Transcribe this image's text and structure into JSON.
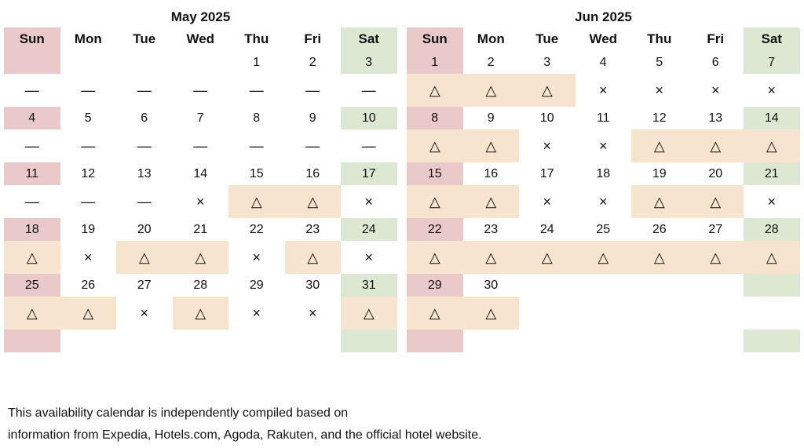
{
  "colors": {
    "sunday": "#e9c9c9",
    "saturday": "#dce8d2",
    "limited": "#f7e4ce"
  },
  "weekdays": [
    "Sun",
    "Mon",
    "Tue",
    "Wed",
    "Thu",
    "Fri",
    "Sat"
  ],
  "symbols": {
    "dash": "—",
    "limited": "△",
    "full": "×"
  },
  "months": [
    {
      "title": "May 2025",
      "weeks": [
        {
          "dates": [
            "",
            "",
            "",
            "",
            "1",
            "2",
            "3"
          ],
          "marks": [
            "—",
            "—",
            "—",
            "—",
            "—",
            "—",
            "—"
          ]
        },
        {
          "dates": [
            "4",
            "5",
            "6",
            "7",
            "8",
            "9",
            "10"
          ],
          "marks": [
            "—",
            "—",
            "—",
            "—",
            "—",
            "—",
            "—"
          ]
        },
        {
          "dates": [
            "11",
            "12",
            "13",
            "14",
            "15",
            "16",
            "17"
          ],
          "marks": [
            "—",
            "—",
            "—",
            "×",
            "△",
            "△",
            "×"
          ]
        },
        {
          "dates": [
            "18",
            "19",
            "20",
            "21",
            "22",
            "23",
            "24"
          ],
          "marks": [
            "△",
            "×",
            "△",
            "△",
            "×",
            "△",
            "×"
          ]
        },
        {
          "dates": [
            "25",
            "26",
            "27",
            "28",
            "29",
            "30",
            "31"
          ],
          "marks": [
            "△",
            "△",
            "×",
            "△",
            "×",
            "×",
            "△"
          ]
        },
        {
          "dates": [
            "",
            "",
            "",
            "",
            "",
            "",
            ""
          ],
          "marks": []
        }
      ]
    },
    {
      "title": "Jun 2025",
      "weeks": [
        {
          "dates": [
            "1",
            "2",
            "3",
            "4",
            "5",
            "6",
            "7"
          ],
          "marks": [
            "△",
            "△",
            "△",
            "×",
            "×",
            "×",
            "×"
          ]
        },
        {
          "dates": [
            "8",
            "9",
            "10",
            "11",
            "12",
            "13",
            "14"
          ],
          "marks": [
            "△",
            "△",
            "×",
            "×",
            "△",
            "△",
            "△"
          ]
        },
        {
          "dates": [
            "15",
            "16",
            "17",
            "18",
            "19",
            "20",
            "21"
          ],
          "marks": [
            "△",
            "△",
            "×",
            "×",
            "△",
            "△",
            "×"
          ]
        },
        {
          "dates": [
            "22",
            "23",
            "24",
            "25",
            "26",
            "27",
            "28"
          ],
          "marks": [
            "△",
            "△",
            "△",
            "△",
            "△",
            "△",
            "△"
          ]
        },
        {
          "dates": [
            "29",
            "30",
            "",
            "",
            "",
            "",
            ""
          ],
          "marks": [
            "△",
            "△",
            "",
            "",
            "",
            "",
            ""
          ]
        },
        {
          "dates": [
            "",
            "",
            "",
            "",
            "",
            "",
            ""
          ],
          "marks": []
        }
      ]
    }
  ],
  "footnote": {
    "line1": "This availability calendar is independently compiled based on",
    "line2": "information from Expedia, Hotels.com, Agoda, Rakuten, and the official hotel website."
  }
}
